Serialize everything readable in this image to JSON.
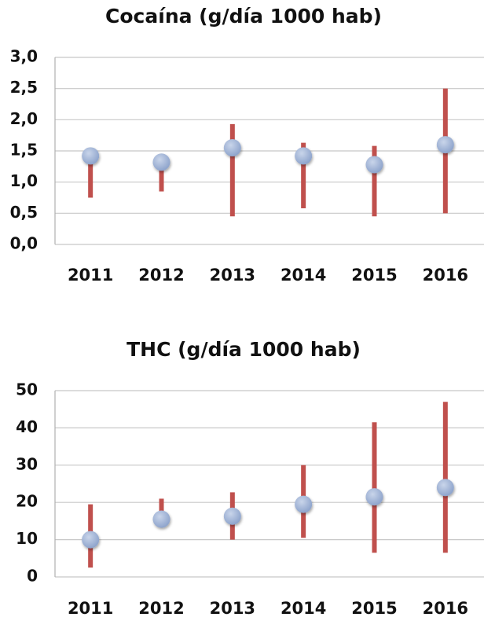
{
  "chart_data": [
    {
      "type": "range",
      "title": "Cocaína (g/día 1000 hab)",
      "categories": [
        "2011",
        "2012",
        "2013",
        "2014",
        "2015",
        "2016"
      ],
      "values": [
        1.42,
        1.32,
        1.55,
        1.42,
        1.28,
        1.6
      ],
      "low": [
        0.75,
        0.85,
        0.45,
        0.58,
        0.45,
        0.5
      ],
      "high": [
        1.35,
        1.35,
        1.93,
        1.63,
        1.58,
        2.5
      ],
      "color": "#9fb3d6",
      "bar_color": "#c0504d",
      "ylim": [
        0,
        3
      ],
      "yticks": [
        {
          "value": 0,
          "label": "0,0"
        },
        {
          "value": 0.5,
          "label": "0,5"
        },
        {
          "value": 1,
          "label": "1,0"
        },
        {
          "value": 1.5,
          "label": "1,5"
        },
        {
          "value": 2,
          "label": "2,0"
        },
        {
          "value": 2.5,
          "label": "2,5"
        },
        {
          "value": 3,
          "label": "3,0"
        }
      ],
      "grid": true
    },
    {
      "type": "range",
      "title": "THC (g/día 1000 hab)",
      "categories": [
        "2011",
        "2012",
        "2013",
        "2014",
        "2015",
        "2016"
      ],
      "values": [
        10,
        15.5,
        16.3,
        19.5,
        21.5,
        24
      ],
      "low": [
        2.5,
        15,
        10,
        10.5,
        6.5,
        6.5
      ],
      "high": [
        19.5,
        21,
        22.7,
        30,
        41.5,
        47
      ],
      "color": "#9fb3d6",
      "bar_color": "#c0504d",
      "ylim": [
        0,
        50
      ],
      "yticks": [
        0,
        10,
        20,
        30,
        40,
        50
      ],
      "grid": true
    }
  ]
}
